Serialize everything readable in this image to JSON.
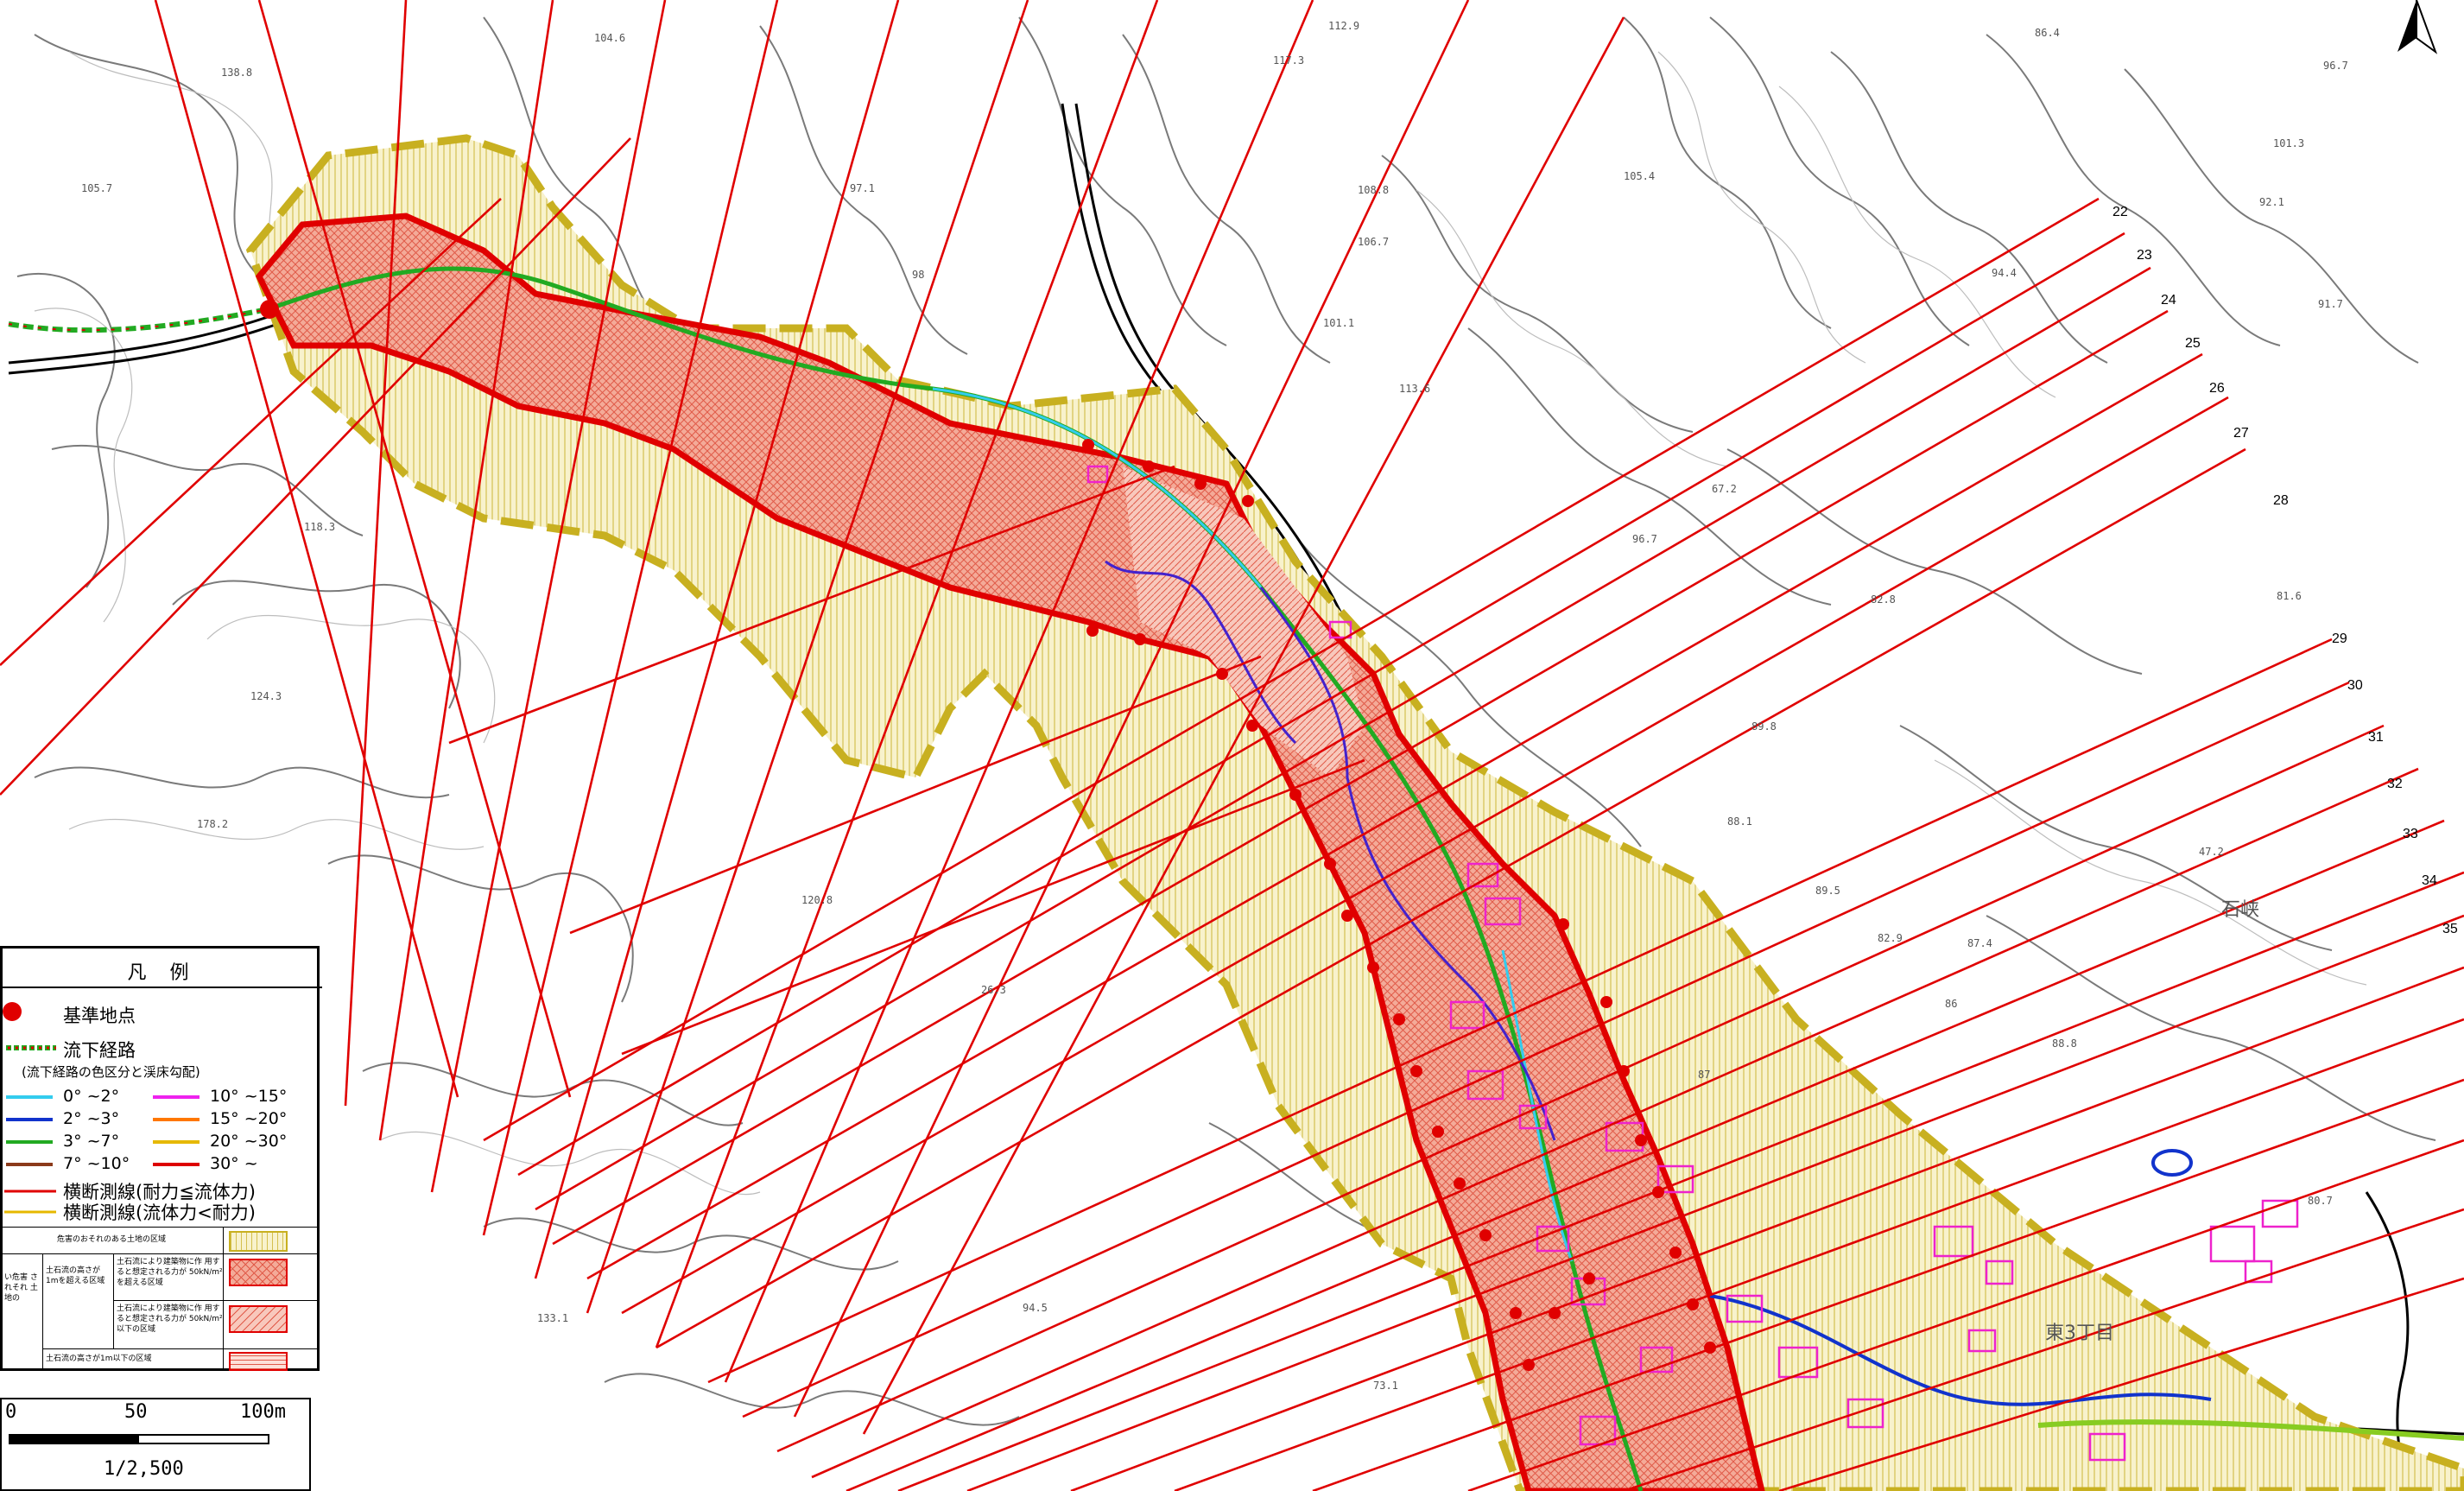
{
  "legend": {
    "title": "凡 例",
    "base_point": "基準地点",
    "flow_path": "流下経路",
    "flow_path_note": "(流下経路の色区分と渓床勾配)",
    "gradients": [
      {
        "label": "0°  ~2°",
        "color": "#33ccee"
      },
      {
        "label": "2°  ~3°",
        "color": "#1133cc"
      },
      {
        "label": "3°  ~7°",
        "color": "#22aa22"
      },
      {
        "label": "7°  ~10°",
        "color": "#8b3a1a"
      },
      {
        "label": "10°  ~15°",
        "color": "#ee22ee"
      },
      {
        "label": "15°  ~20°",
        "color": "#ff7700"
      },
      {
        "label": "20°  ~30°",
        "color": "#e6b800"
      },
      {
        "label": "30°  ~",
        "color": "#dd0000"
      }
    ],
    "cross_red": "横断測線(耐力≦流体力)",
    "cross_yellow": "横断測線(流体力<耐力)",
    "zone_danger": "危害のおそれのある土地の区域",
    "zone_left": "い危害 されそれ 土地の",
    "zone_mid": "土石流の高さが 1mを超える区域",
    "zone_a": "土石流により建築物に作 用すると想定される力が 50kN/m²を超える区域",
    "zone_b": "土石流により建築物に作 用すると想定される力が 50kN/m²以下の区域",
    "zone_c": "土石流の高さが1m以下の区域"
  },
  "scale": {
    "t0": "0",
    "t50": "50",
    "t100": "100m",
    "ratio": "1/2,500"
  },
  "section_numbers": [
    "22",
    "23",
    "24",
    "25",
    "26",
    "27",
    "28",
    "29",
    "30",
    "31",
    "32",
    "33",
    "34",
    "35"
  ],
  "elevations": [
    "104.6",
    "138.8",
    "105.7",
    "112.9",
    "117.3",
    "86.4",
    "96.7",
    "97.1",
    "101.3",
    "105.4",
    "108.8",
    "92.1",
    "94.4",
    "91.7",
    "98",
    "101.1",
    "106.7",
    "113.6",
    "96.7",
    "82.8",
    "81.6",
    "67.2",
    "118.3",
    "124.3",
    "178.2",
    "120.8",
    "133.1",
    "94.5",
    "73.1",
    "89.8",
    "88.1",
    "89.5",
    "82.9",
    "87.4",
    "86",
    "88.8",
    "87",
    "80.7",
    "47.2",
    "26.3"
  ],
  "place_names": [
    "石峡",
    "東3丁目"
  ],
  "colors": {
    "hazard_red": "#e00000",
    "zone_yellow": "#c8b020",
    "fill_red": "#f2a090",
    "fill_yellow": "#f7eec0"
  }
}
